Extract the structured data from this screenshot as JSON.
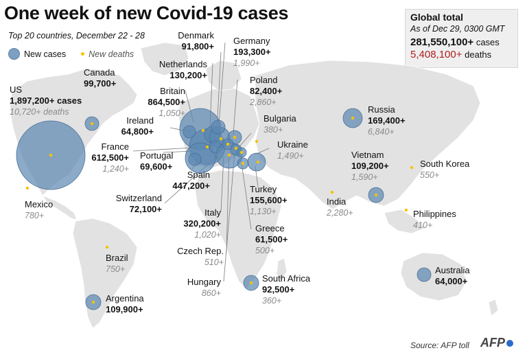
{
  "title": "One week of new Covid-19 cases",
  "subtitle": "Top 20 countries, December 22 - 28",
  "legend": {
    "cases": "New cases",
    "deaths": "New deaths"
  },
  "global": {
    "title": "Global total",
    "as_of": "As of Dec 29, 0300 GMT",
    "cases_value": "281,550,100+",
    "cases_unit": "cases",
    "deaths_value": "5,408,100+",
    "deaths_unit": "deaths"
  },
  "countries": {
    "us": {
      "name": "US",
      "cases": "1,897,200+ cases",
      "deaths": "10,720+ deaths"
    },
    "canada": {
      "name": "Canada",
      "cases": "99,700+"
    },
    "mexico": {
      "name": "Mexico",
      "deaths": "780+"
    },
    "brazil": {
      "name": "Brazil",
      "deaths": "750+"
    },
    "argentina": {
      "name": "Argentina",
      "cases": "109,900+"
    },
    "ireland": {
      "name": "Ireland",
      "cases": "64,800+"
    },
    "britain": {
      "name": "Britain",
      "cases": "864,500+",
      "deaths": "1,050+"
    },
    "netherlands": {
      "name": "Netherlands",
      "cases": "130,200+"
    },
    "denmark": {
      "name": "Denmark",
      "cases": "91,800+"
    },
    "germany": {
      "name": "Germany",
      "cases": "193,300+",
      "deaths": "1,990+"
    },
    "poland": {
      "name": "Poland",
      "cases": "82,400+",
      "deaths": "2,860+"
    },
    "bulgaria": {
      "name": "Bulgaria",
      "deaths": "380+"
    },
    "ukraine": {
      "name": "Ukraine",
      "deaths": "1,490+"
    },
    "france": {
      "name": "France",
      "cases": "612,500+",
      "deaths": "1,240+"
    },
    "portugal": {
      "name": "Portugal",
      "cases": "69,600+"
    },
    "spain": {
      "name": "Spain",
      "cases": "447,200+"
    },
    "switzerland": {
      "name": "Switzerland",
      "cases": "72,100+"
    },
    "italy": {
      "name": "Italy",
      "cases": "320,200+",
      "deaths": "1,020+"
    },
    "czech": {
      "name": "Czech Rep.",
      "deaths": "510+"
    },
    "hungary": {
      "name": "Hungary",
      "deaths": "860+"
    },
    "turkey": {
      "name": "Turkey",
      "cases": "155,600+",
      "deaths": "1,130+"
    },
    "greece": {
      "name": "Greece",
      "cases": "61,500+",
      "deaths": "500+"
    },
    "south_africa": {
      "name": "South Africa",
      "cases": "92,500+",
      "deaths": "360+"
    },
    "russia": {
      "name": "Russia",
      "cases": "169,400+",
      "deaths": "6,840+"
    },
    "india": {
      "name": "India",
      "deaths": "2,280+"
    },
    "vietnam": {
      "name": "Vietnam",
      "cases": "109,200+",
      "deaths": "1,590+"
    },
    "south_korea": {
      "name": "South Korea",
      "deaths": "550+"
    },
    "philippines": {
      "name": "Philippines",
      "deaths": "410+"
    },
    "australia": {
      "name": "Australia",
      "cases": "64,000+"
    }
  },
  "colors": {
    "land": "#e2e2e2",
    "bubble": "#5b87b2",
    "deaths_dot": "#f5c400",
    "deaths_text": "#b01e1e"
  },
  "source": "Source: AFP toll",
  "logo": "AFP"
}
